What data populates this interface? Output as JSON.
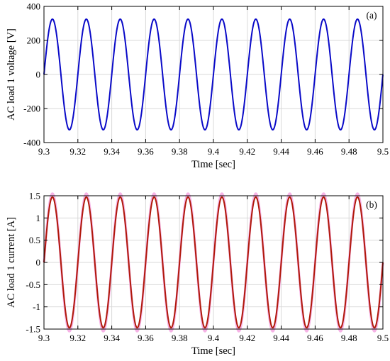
{
  "chart_data": [
    {
      "type": "line",
      "panel_label": "(a)",
      "xlabel": "Time [sec]",
      "ylabel": "AC load 1 voltage [V]",
      "xlim": [
        9.3,
        9.5
      ],
      "ylim": [
        -400,
        400
      ],
      "xticks": [
        9.3,
        9.32,
        9.34,
        9.36,
        9.38,
        9.4,
        9.42,
        9.44,
        9.46,
        9.48,
        9.5
      ],
      "xtick_labels": [
        "9.3",
        "9.32",
        "9.34",
        "9.36",
        "9.38",
        "9.4",
        "9.42",
        "9.44",
        "9.46",
        "9.48",
        "9.5"
      ],
      "yticks": [
        -400,
        -200,
        0,
        200,
        400
      ],
      "ytick_labels": [
        "-400",
        "-200",
        "0",
        "200",
        "400"
      ],
      "grid": true,
      "series": [
        {
          "waveform": "sine",
          "amplitude": 325,
          "frequency_hz": 50,
          "phase_deg": 0,
          "color": "#0a0ac8"
        }
      ]
    },
    {
      "type": "line",
      "panel_label": "(b)",
      "xlabel": "Time [sec]",
      "ylabel": "AC load 1 current [A]",
      "xlim": [
        9.3,
        9.5
      ],
      "ylim": [
        -1.5,
        1.5
      ],
      "xticks": [
        9.3,
        9.32,
        9.34,
        9.36,
        9.38,
        9.4,
        9.42,
        9.44,
        9.46,
        9.48,
        9.5
      ],
      "xtick_labels": [
        "9.3",
        "9.32",
        "9.34",
        "9.36",
        "9.38",
        "9.4",
        "9.42",
        "9.44",
        "9.46",
        "9.48",
        "9.5"
      ],
      "yticks": [
        -1.5,
        -1,
        -0.5,
        0,
        0.5,
        1,
        1.5
      ],
      "ytick_labels": [
        "-1.5",
        "-1",
        "-0.5",
        "0",
        "0.5",
        "1",
        "1.5"
      ],
      "grid": true,
      "series": [
        {
          "waveform": "sine",
          "amplitude": 1.47,
          "frequency_hz": 50,
          "phase_deg": 0,
          "color": "#b01a0a"
        },
        {
          "waveform": "sine",
          "amplitude": 1.55,
          "frequency_hz": 50,
          "phase_deg": 0,
          "color": "#f6b3e6"
        }
      ]
    }
  ]
}
